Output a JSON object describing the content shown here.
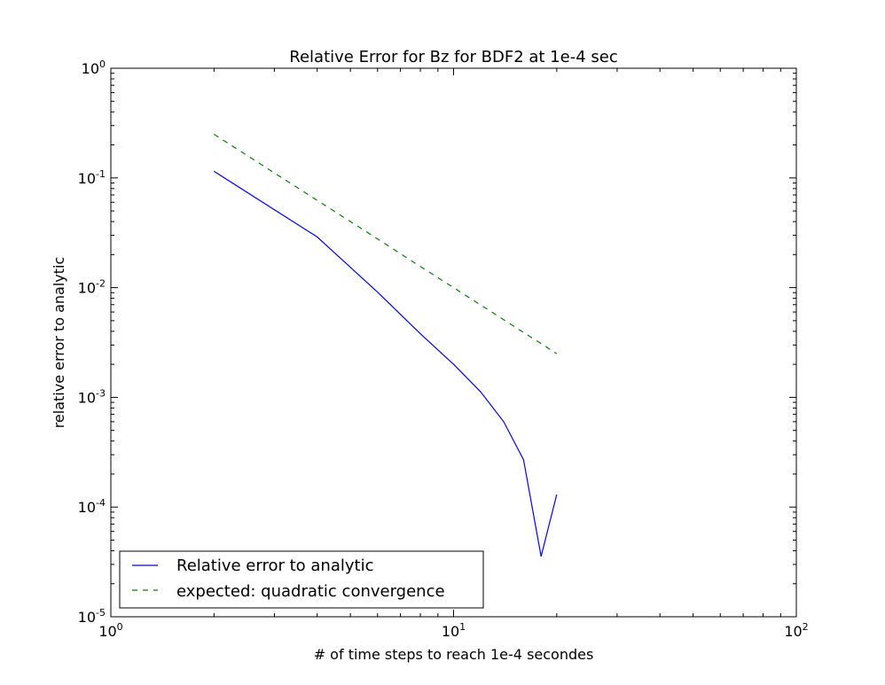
{
  "chart_data": {
    "type": "line",
    "title": "Relative Error for Bz for BDF2 at 1e-4 sec",
    "xlabel": "# of time steps to reach 1e-4 secondes",
    "ylabel": "relative error to analytic",
    "xscale": "log",
    "yscale": "log",
    "xlim": [
      1,
      100
    ],
    "ylim": [
      1e-05,
      1
    ],
    "x_ticks": [
      {
        "value": 1,
        "base": "10",
        "exp": "0"
      },
      {
        "value": 10,
        "base": "10",
        "exp": "1"
      },
      {
        "value": 100,
        "base": "10",
        "exp": "2"
      }
    ],
    "y_ticks": [
      {
        "value": 1,
        "base": "10",
        "exp": "0"
      },
      {
        "value": 0.1,
        "base": "10",
        "exp": "-1"
      },
      {
        "value": 0.01,
        "base": "10",
        "exp": "-2"
      },
      {
        "value": 0.001,
        "base": "10",
        "exp": "-3"
      },
      {
        "value": 0.0001,
        "base": "10",
        "exp": "-4"
      },
      {
        "value": 1e-05,
        "base": "10",
        "exp": "-5"
      }
    ],
    "grid": false,
    "legend_position": "lower-left",
    "series": [
      {
        "name": "Relative error to analytic",
        "color": "#0000ff",
        "style": "solid",
        "x": [
          2,
          4,
          6,
          8,
          10,
          12,
          14,
          16,
          18,
          20
        ],
        "y": [
          0.115,
          0.029,
          0.0091,
          0.0038,
          0.002,
          0.00112,
          0.0006,
          0.00027,
          3.55e-05,
          0.00013
        ]
      },
      {
        "name": "expected: quadratic convergence",
        "color": "#008000",
        "style": "dashed",
        "x": [
          2,
          4,
          6,
          8,
          10,
          12,
          14,
          16,
          18,
          20
        ],
        "y": [
          0.25,
          0.0625,
          0.0278,
          0.0156,
          0.01,
          0.00694,
          0.0051,
          0.0039,
          0.00309,
          0.0025
        ]
      }
    ]
  }
}
